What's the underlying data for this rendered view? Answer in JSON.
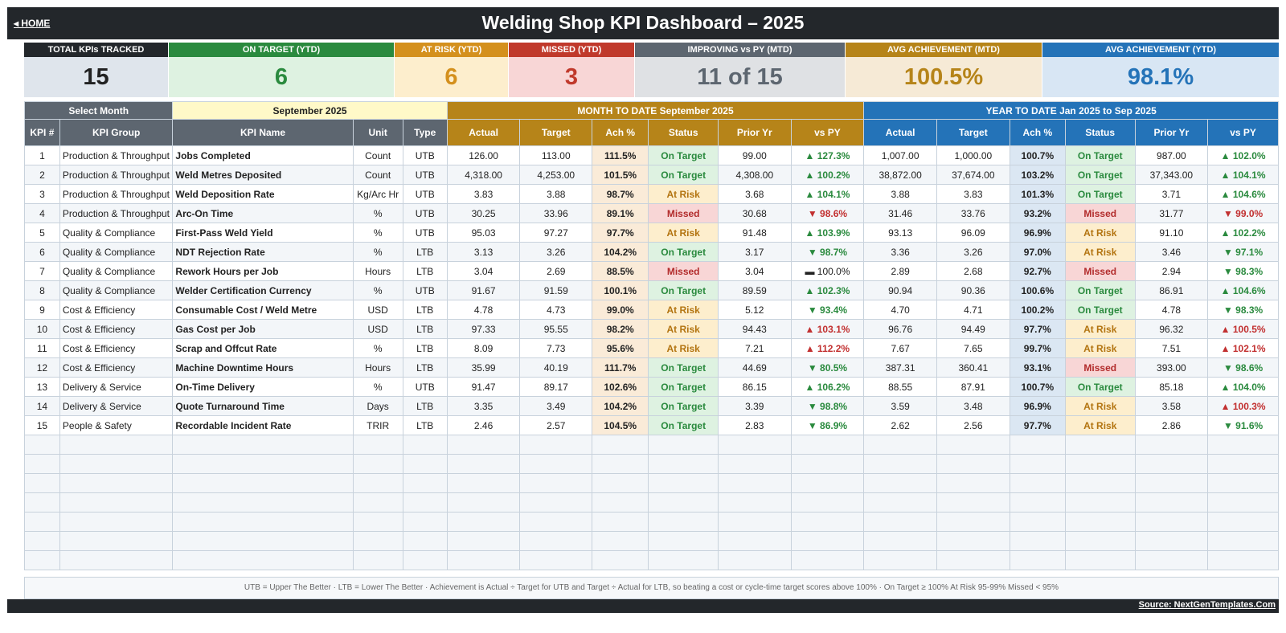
{
  "header": {
    "home_label": "◂ HOME",
    "title": "Welding Shop KPI Dashboard   –   2025"
  },
  "cards": [
    {
      "label": "TOTAL KPIs TRACKED",
      "value": "15",
      "head_color": "#23272b",
      "bg": "#dfe5ec",
      "val_color": "#222222"
    },
    {
      "label": "ON TARGET (YTD)",
      "value": "6",
      "head_color": "#2a8a3e",
      "bg": "#def2e1",
      "val_color": "#2a8a3e"
    },
    {
      "label": "AT RISK (YTD)",
      "value": "6",
      "head_color": "#d4901d",
      "bg": "#fdeecd",
      "val_color": "#d4901d"
    },
    {
      "label": "MISSED (YTD)",
      "value": "3",
      "head_color": "#c0392b",
      "bg": "#f8d6d6",
      "val_color": "#c0392b"
    },
    {
      "label": "IMPROVING vs PY (MTD)",
      "value": "11 of 15",
      "head_color": "#5d6670",
      "bg": "#dfe1e4",
      "val_color": "#5d6670"
    },
    {
      "label": "AVG ACHIEVEMENT (MTD)",
      "value": "100.5%",
      "head_color": "#b68419",
      "bg": "#f6ead6",
      "val_color": "#b68419"
    },
    {
      "label": "AVG ACHIEVEMENT (YTD)",
      "value": "98.1%",
      "head_color": "#2473b8",
      "bg": "#d8e6f4",
      "val_color": "#2473b8"
    }
  ],
  "selector": {
    "label": "Select Month",
    "value": "September 2025"
  },
  "sections": {
    "mtd": "MONTH TO DATE     September 2025",
    "ytd": "YEAR TO DATE     Jan 2025  to  Sep 2025"
  },
  "columns": {
    "num": "KPI #",
    "group": "KPI Group",
    "name": "KPI Name",
    "unit": "Unit",
    "type": "Type",
    "actual": "Actual",
    "target": "Target",
    "ach": "Ach %",
    "status": "Status",
    "prior": "Prior Yr",
    "vs": "vs PY"
  },
  "rows": [
    {
      "num": "1",
      "group": "Production & Throughput",
      "name": "Jobs Completed",
      "unit": "Count",
      "type": "UTB",
      "m_actual": "126.00",
      "m_target": "113.00",
      "m_ach": "111.5%",
      "m_status": "On Target",
      "m_prior": "99.00",
      "m_vs": "▲ 127.3%",
      "y_actual": "1,007.00",
      "y_target": "1,000.00",
      "y_ach": "100.7%",
      "y_status": "On Target",
      "y_prior": "987.00",
      "y_vs": "▲ 102.0%"
    },
    {
      "num": "2",
      "group": "Production & Throughput",
      "name": "Weld Metres Deposited",
      "unit": "Count",
      "type": "UTB",
      "m_actual": "4,318.00",
      "m_target": "4,253.00",
      "m_ach": "101.5%",
      "m_status": "On Target",
      "m_prior": "4,308.00",
      "m_vs": "▲ 100.2%",
      "y_actual": "38,872.00",
      "y_target": "37,674.00",
      "y_ach": "103.2%",
      "y_status": "On Target",
      "y_prior": "37,343.00",
      "y_vs": "▲ 104.1%"
    },
    {
      "num": "3",
      "group": "Production & Throughput",
      "name": "Weld Deposition Rate",
      "unit": "Kg/Arc Hr",
      "type": "UTB",
      "m_actual": "3.83",
      "m_target": "3.88",
      "m_ach": "98.7%",
      "m_status": "At Risk",
      "m_prior": "3.68",
      "m_vs": "▲ 104.1%",
      "y_actual": "3.88",
      "y_target": "3.83",
      "y_ach": "101.3%",
      "y_status": "On Target",
      "y_prior": "3.71",
      "y_vs": "▲ 104.6%"
    },
    {
      "num": "4",
      "group": "Production & Throughput",
      "name": "Arc-On Time",
      "unit": "%",
      "type": "UTB",
      "m_actual": "30.25",
      "m_target": "33.96",
      "m_ach": "89.1%",
      "m_status": "Missed",
      "m_prior": "30.68",
      "m_vs": "▼ 98.6%",
      "y_actual": "31.46",
      "y_target": "33.76",
      "y_ach": "93.2%",
      "y_status": "Missed",
      "y_prior": "31.77",
      "y_vs": "▼ 99.0%"
    },
    {
      "num": "5",
      "group": "Quality & Compliance",
      "name": "First-Pass Weld Yield",
      "unit": "%",
      "type": "UTB",
      "m_actual": "95.03",
      "m_target": "97.27",
      "m_ach": "97.7%",
      "m_status": "At Risk",
      "m_prior": "91.48",
      "m_vs": "▲ 103.9%",
      "y_actual": "93.13",
      "y_target": "96.09",
      "y_ach": "96.9%",
      "y_status": "At Risk",
      "y_prior": "91.10",
      "y_vs": "▲ 102.2%"
    },
    {
      "num": "6",
      "group": "Quality & Compliance",
      "name": "NDT Rejection Rate",
      "unit": "%",
      "type": "LTB",
      "m_actual": "3.13",
      "m_target": "3.26",
      "m_ach": "104.2%",
      "m_status": "On Target",
      "m_prior": "3.17",
      "m_vs": "▼ 98.7%",
      "y_actual": "3.36",
      "y_target": "3.26",
      "y_ach": "97.0%",
      "y_status": "At Risk",
      "y_prior": "3.46",
      "y_vs": "▼ 97.1%"
    },
    {
      "num": "7",
      "group": "Quality & Compliance",
      "name": "Rework Hours per Job",
      "unit": "Hours",
      "type": "LTB",
      "m_actual": "3.04",
      "m_target": "2.69",
      "m_ach": "88.5%",
      "m_status": "Missed",
      "m_prior": "3.04",
      "m_vs": "▬ 100.0%",
      "y_actual": "2.89",
      "y_target": "2.68",
      "y_ach": "92.7%",
      "y_status": "Missed",
      "y_prior": "2.94",
      "y_vs": "▼ 98.3%"
    },
    {
      "num": "8",
      "group": "Quality & Compliance",
      "name": "Welder Certification Currency",
      "unit": "%",
      "type": "UTB",
      "m_actual": "91.67",
      "m_target": "91.59",
      "m_ach": "100.1%",
      "m_status": "On Target",
      "m_prior": "89.59",
      "m_vs": "▲ 102.3%",
      "y_actual": "90.94",
      "y_target": "90.36",
      "y_ach": "100.6%",
      "y_status": "On Target",
      "y_prior": "86.91",
      "y_vs": "▲ 104.6%"
    },
    {
      "num": "9",
      "group": "Cost & Efficiency",
      "name": "Consumable Cost / Weld Metre",
      "unit": "USD",
      "type": "LTB",
      "m_actual": "4.78",
      "m_target": "4.73",
      "m_ach": "99.0%",
      "m_status": "At Risk",
      "m_prior": "5.12",
      "m_vs": "▼ 93.4%",
      "y_actual": "4.70",
      "y_target": "4.71",
      "y_ach": "100.2%",
      "y_status": "On Target",
      "y_prior": "4.78",
      "y_vs": "▼ 98.3%"
    },
    {
      "num": "10",
      "group": "Cost & Efficiency",
      "name": "Gas Cost per Job",
      "unit": "USD",
      "type": "LTB",
      "m_actual": "97.33",
      "m_target": "95.55",
      "m_ach": "98.2%",
      "m_status": "At Risk",
      "m_prior": "94.43",
      "m_vs": "▲ 103.1%",
      "y_actual": "96.76",
      "y_target": "94.49",
      "y_ach": "97.7%",
      "y_status": "At Risk",
      "y_prior": "96.32",
      "y_vs": "▲ 100.5%"
    },
    {
      "num": "11",
      "group": "Cost & Efficiency",
      "name": "Scrap and Offcut Rate",
      "unit": "%",
      "type": "LTB",
      "m_actual": "8.09",
      "m_target": "7.73",
      "m_ach": "95.6%",
      "m_status": "At Risk",
      "m_prior": "7.21",
      "m_vs": "▲ 112.2%",
      "y_actual": "7.67",
      "y_target": "7.65",
      "y_ach": "99.7%",
      "y_status": "At Risk",
      "y_prior": "7.51",
      "y_vs": "▲ 102.1%"
    },
    {
      "num": "12",
      "group": "Cost & Efficiency",
      "name": "Machine Downtime Hours",
      "unit": "Hours",
      "type": "LTB",
      "m_actual": "35.99",
      "m_target": "40.19",
      "m_ach": "111.7%",
      "m_status": "On Target",
      "m_prior": "44.69",
      "m_vs": "▼ 80.5%",
      "y_actual": "387.31",
      "y_target": "360.41",
      "y_ach": "93.1%",
      "y_status": "Missed",
      "y_prior": "393.00",
      "y_vs": "▼ 98.6%"
    },
    {
      "num": "13",
      "group": "Delivery & Service",
      "name": "On-Time Delivery",
      "unit": "%",
      "type": "UTB",
      "m_actual": "91.47",
      "m_target": "89.17",
      "m_ach": "102.6%",
      "m_status": "On Target",
      "m_prior": "86.15",
      "m_vs": "▲ 106.2%",
      "y_actual": "88.55",
      "y_target": "87.91",
      "y_ach": "100.7%",
      "y_status": "On Target",
      "y_prior": "85.18",
      "y_vs": "▲ 104.0%"
    },
    {
      "num": "14",
      "group": "Delivery & Service",
      "name": "Quote Turnaround Time",
      "unit": "Days",
      "type": "LTB",
      "m_actual": "3.35",
      "m_target": "3.49",
      "m_ach": "104.2%",
      "m_status": "On Target",
      "m_prior": "3.39",
      "m_vs": "▼ 98.8%",
      "y_actual": "3.59",
      "y_target": "3.48",
      "y_ach": "96.9%",
      "y_status": "At Risk",
      "y_prior": "3.58",
      "y_vs": "▲ 100.3%"
    },
    {
      "num": "15",
      "group": "People & Safety",
      "name": "Recordable Incident Rate",
      "unit": "TRIR",
      "type": "LTB",
      "m_actual": "2.46",
      "m_target": "2.57",
      "m_ach": "104.5%",
      "m_status": "On Target",
      "m_prior": "2.83",
      "m_vs": "▼ 86.9%",
      "y_actual": "2.62",
      "y_target": "2.56",
      "y_ach": "97.7%",
      "y_status": "At Risk",
      "y_prior": "2.86",
      "y_vs": "▼ 91.6%"
    }
  ],
  "footnote": "UTB = Upper The Better   ·   LTB = Lower The Better   ·   Achievement is Actual ÷ Target for UTB and Target ÷ Actual for LTB, so beating a cost or cycle-time target scores above 100%   ·   On Target ≥ 100%    At Risk 95-99%    Missed < 95%",
  "source": "Source: NextGenTemplates.Com",
  "colors": {
    "dark": "#23272b",
    "mtd": "#b68419",
    "ytd": "#2473b8",
    "header_gray": "#5d6670",
    "good": "#2a8a3e",
    "bad": "#c23030"
  }
}
